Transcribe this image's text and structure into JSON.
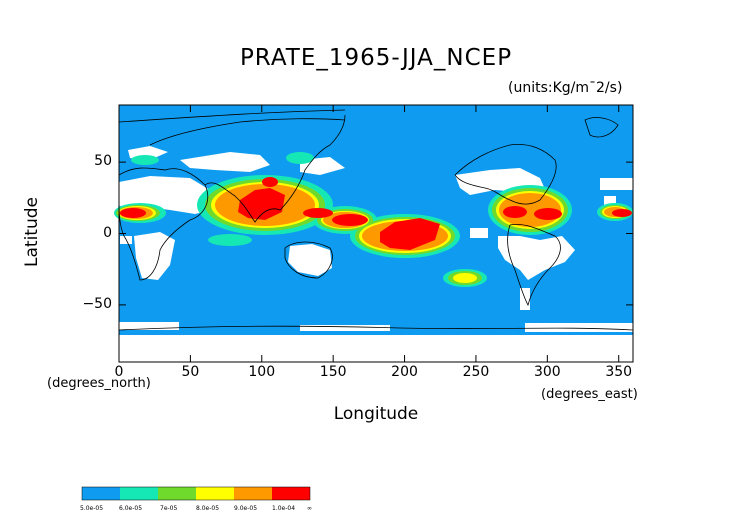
{
  "title": "PRATE_1965-JJA_NCEP",
  "units": "(units:Kg/m¯2/s)",
  "axes": {
    "xlabel": "Longitude",
    "ylabel": "Latitude",
    "x_unit": "(degrees_east)",
    "y_unit": "(degrees_north)",
    "x_ticks": [
      "0",
      "50",
      "100",
      "150",
      "200",
      "250",
      "300",
      "350"
    ],
    "y_ticks": [
      "50",
      "0",
      "−50"
    ],
    "x_range": [
      0,
      360
    ],
    "y_range": [
      -90,
      90
    ]
  },
  "colors": {
    "c1": "#0f9cf0",
    "c2": "#16e8b5",
    "c3": "#70da2c",
    "c4": "#ffff00",
    "c5": "#ff9900",
    "c6": "#ff0000"
  },
  "colorbar": {
    "labels": [
      "5.0e-05",
      "6.0e-05",
      "7e-05",
      "8.0e-05",
      "9.0e-05",
      "1.0e-04",
      "∞"
    ]
  }
}
